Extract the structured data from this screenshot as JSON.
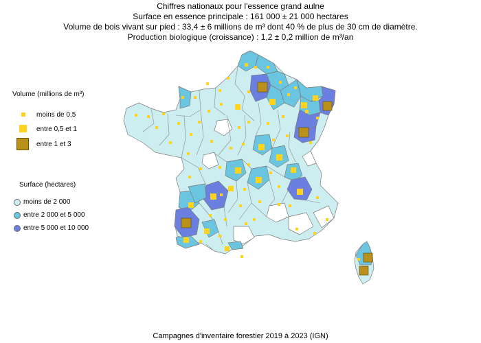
{
  "header": {
    "title": "Chiffres nationaux pour l'essence grand aulne",
    "line_surface": "Surface en essence principale : 161 000 ± 21 000 hectares",
    "line_volume": "Volume de bois vivant sur pied : 33,4 ± 6 millions de m³ dont 40 % de plus de 30 cm de diamètre.",
    "line_production": "Production biologique (croissance) : 1,2 ± 0,2 million de m³/an"
  },
  "legend_volume": {
    "title": "Volume (millions de m³)",
    "items": [
      {
        "label": "moins de 0,5",
        "color": "#ffd21e"
      },
      {
        "label": "entre 0,5 et 1",
        "color": "#ffd21e"
      },
      {
        "label": "entre 1 et 3",
        "color": "#b8901a"
      }
    ]
  },
  "legend_surface": {
    "title": "Surface (hectares)",
    "items": [
      {
        "label": "moins de 2 000",
        "color": "#cdeef0"
      },
      {
        "label": "entre 2 000 et 5 000",
        "color": "#6ac5e0"
      },
      {
        "label": "entre 5 000 et 10 000",
        "color": "#6b7fe0"
      }
    ]
  },
  "map": {
    "colors": {
      "no_data": "#ffffff",
      "low": "#cdeef0",
      "mid": "#6ac5e0",
      "high": "#6b7fe0",
      "border": "#7a7a7a",
      "vol_small": "#ffd21e",
      "vol_mid": "#ffd21e",
      "vol_large": "#b8901a"
    }
  },
  "footer": "Campagnes d'inventaire forestier 2019 à 2023 (IGN)"
}
